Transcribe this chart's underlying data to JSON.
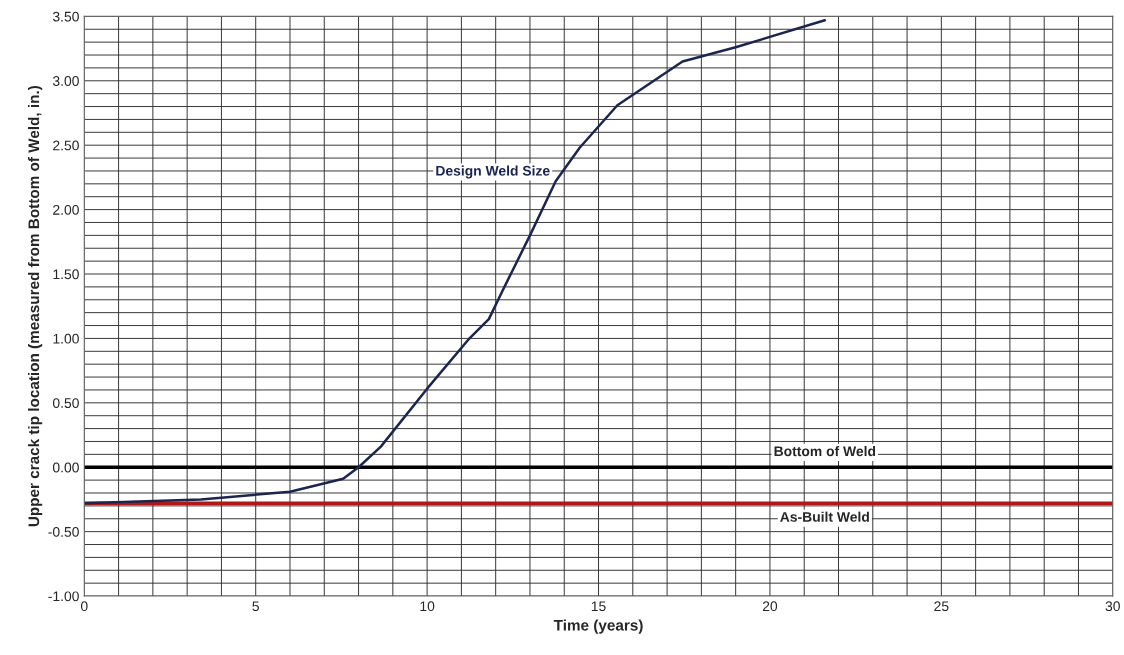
{
  "chart_data": {
    "type": "line",
    "xlabel": "Time (years)",
    "ylabel": "Upper crack tip location (measured from Bottom of Weld, in.)",
    "series": [
      {
        "name": "Design Weld Size",
        "color": "#1c2550",
        "x": [
          0,
          3.4,
          6.0,
          7.55,
          8.0,
          8.65,
          10.0,
          11.2,
          11.8,
          12.2,
          13.0,
          13.75,
          14.45,
          15.55,
          17.45,
          19.0,
          21.6
        ],
        "values": [
          -0.28,
          -0.25,
          -0.19,
          -0.09,
          0.0,
          0.16,
          0.61,
          0.99,
          1.15,
          1.37,
          1.8,
          2.22,
          2.48,
          2.81,
          3.15,
          3.26,
          3.47
        ]
      }
    ],
    "ref_lines": [
      {
        "axis": "y",
        "value": 0,
        "label": "Bottom of Weld",
        "color": "#000000"
      },
      {
        "axis": "y",
        "value": -0.28,
        "label": "As-Built Weld",
        "color": "#b01818"
      }
    ],
    "xlim": [
      0,
      30
    ],
    "ylim": [
      -1.0,
      3.5
    ],
    "xticks": [
      0,
      {
        "value": 1,
        "label": null
      },
      {
        "value": 2,
        "label": null
      },
      {
        "value": 3,
        "label": null
      },
      {
        "value": 4,
        "label": null
      },
      5,
      {
        "value": 6,
        "label": null
      },
      {
        "value": 7,
        "label": null
      },
      {
        "value": 8,
        "label": null
      },
      {
        "value": 9,
        "label": null
      },
      10,
      {
        "value": 11,
        "label": null
      },
      {
        "value": 12,
        "label": null
      },
      {
        "value": 13,
        "label": null
      },
      {
        "value": 14,
        "label": null
      },
      15,
      {
        "value": 16,
        "label": null
      },
      {
        "value": 17,
        "label": null
      },
      {
        "value": 18,
        "label": null
      },
      {
        "value": 19,
        "label": null
      },
      20,
      {
        "value": 21,
        "label": null
      },
      {
        "value": 22,
        "label": null
      },
      {
        "value": 23,
        "label": null
      },
      {
        "value": 24,
        "label": null
      },
      25,
      {
        "value": 26,
        "label": null
      },
      {
        "value": 27,
        "label": null
      },
      {
        "value": 28,
        "label": null
      },
      {
        "value": 29,
        "label": null
      },
      30
    ],
    "yticks": [
      {
        "value": -1.0,
        "label": "-1.00"
      },
      {
        "value": -0.9,
        "label": null
      },
      {
        "value": -0.8,
        "label": null
      },
      {
        "value": -0.7,
        "label": null
      },
      {
        "value": -0.6,
        "label": null
      },
      {
        "value": -0.5,
        "label": "-0.50"
      },
      {
        "value": -0.4,
        "label": null
      },
      {
        "value": -0.3,
        "label": null
      },
      {
        "value": -0.2,
        "label": null
      },
      {
        "value": -0.1,
        "label": null
      },
      {
        "value": 0.0,
        "label": "0.00"
      },
      {
        "value": 0.1,
        "label": null
      },
      {
        "value": 0.2,
        "label": null
      },
      {
        "value": 0.3,
        "label": null
      },
      {
        "value": 0.4,
        "label": null
      },
      {
        "value": 0.5,
        "label": "0.50"
      },
      {
        "value": 0.6,
        "label": null
      },
      {
        "value": 0.7,
        "label": null
      },
      {
        "value": 0.8,
        "label": null
      },
      {
        "value": 0.9,
        "label": null
      },
      {
        "value": 1.0,
        "label": "1.00"
      },
      {
        "value": 1.1,
        "label": null
      },
      {
        "value": 1.2,
        "label": null
      },
      {
        "value": 1.3,
        "label": null
      },
      {
        "value": 1.4,
        "label": null
      },
      {
        "value": 1.5,
        "label": "1.50"
      },
      {
        "value": 1.6,
        "label": null
      },
      {
        "value": 1.7,
        "label": null
      },
      {
        "value": 1.8,
        "label": null
      },
      {
        "value": 1.9,
        "label": null
      },
      {
        "value": 2.0,
        "label": "2.00"
      },
      {
        "value": 2.1,
        "label": null
      },
      {
        "value": 2.2,
        "label": null
      },
      {
        "value": 2.3,
        "label": null
      },
      {
        "value": 2.4,
        "label": null
      },
      {
        "value": 2.5,
        "label": "2.50"
      },
      {
        "value": 2.6,
        "label": null
      },
      {
        "value": 2.7,
        "label": null
      },
      {
        "value": 2.8,
        "label": null
      },
      {
        "value": 2.9,
        "label": null
      },
      {
        "value": 3.0,
        "label": "3.00"
      },
      {
        "value": 3.1,
        "label": null
      },
      {
        "value": 3.2,
        "label": null
      },
      {
        "value": 3.3,
        "label": null
      },
      {
        "value": 3.4,
        "label": null
      },
      {
        "value": 3.5,
        "label": "3.50"
      }
    ],
    "grid": true,
    "marker": "none",
    "line_style": "solid"
  }
}
